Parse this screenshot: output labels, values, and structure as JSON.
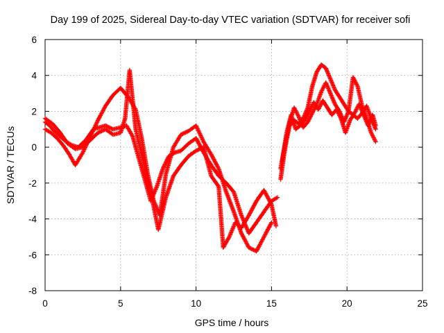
{
  "chart_data": {
    "type": "scatter",
    "title": "Day 199 of 2025, Sidereal Day-to-day VTEC variation (SDTVAR) for receiver sofi",
    "xlabel": "GPS time / hours",
    "ylabel": "SDTVAR / TECUs",
    "xlim": [
      0,
      25
    ],
    "ylim": [
      -8,
      6
    ],
    "x_ticks": [
      "0",
      "5",
      "10",
      "15",
      "20",
      "25"
    ],
    "y_ticks": [
      "-8",
      "-6",
      "-4",
      "-2",
      "0",
      "2",
      "4",
      "6"
    ],
    "grid": true,
    "marker": "plus",
    "color": "#ff0000",
    "series": [
      {
        "name": "",
        "x": [
          0.0,
          0.3,
          0.6,
          1.0,
          1.4,
          1.8,
          2.2,
          2.7,
          3.2,
          3.6,
          4.0,
          4.5,
          5.0,
          5.4,
          5.8,
          6.2,
          6.6,
          7.0,
          7.4,
          7.8,
          8.2,
          8.6,
          9.0,
          9.5,
          10.0,
          10.5,
          11.0,
          11.5,
          12.0,
          12.5,
          13.0,
          13.5,
          14.0,
          14.5,
          15.0,
          15.4
        ],
        "y": [
          1.4,
          1.2,
          0.9,
          0.6,
          0.3,
          0.1,
          0.0,
          0.4,
          1.0,
          1.1,
          1.2,
          1.0,
          1.1,
          1.2,
          0.6,
          -0.6,
          -1.8,
          -3.0,
          -2.2,
          -1.2,
          -0.5,
          -0.3,
          -0.2,
          0.2,
          0.5,
          -0.3,
          -1.0,
          -1.6,
          -2.0,
          -2.5,
          -3.8,
          -4.8,
          -4.2,
          -3.6,
          -3.0,
          -2.8
        ]
      },
      {
        "name": "",
        "x": [
          0.0,
          0.4,
          0.8,
          1.2,
          1.6,
          2.0,
          2.5,
          3.0,
          3.5,
          4.0,
          4.5,
          5.0,
          5.5,
          6.0,
          6.4,
          6.8,
          7.2,
          7.6,
          8.0,
          8.5,
          9.0,
          9.5,
          10.0,
          10.5,
          11.0,
          11.5,
          12.0,
          12.5,
          13.0,
          13.5,
          14.0,
          14.5,
          15.0
        ],
        "y": [
          1.0,
          0.8,
          0.5,
          0.1,
          -0.4,
          -1.0,
          -0.3,
          0.6,
          1.5,
          2.3,
          2.9,
          3.3,
          2.8,
          2.1,
          0.5,
          -1.5,
          -3.0,
          -3.8,
          -1.5,
          0.0,
          0.7,
          0.9,
          1.2,
          0.3,
          -0.4,
          -1.2,
          -2.5,
          -3.6,
          -4.8,
          -5.6,
          -5.8,
          -5.0,
          -4.2
        ]
      },
      {
        "name": "",
        "x": [
          0.0,
          0.5,
          1.0,
          1.5,
          2.0,
          2.5,
          3.0,
          3.5,
          4.0,
          4.5,
          5.0,
          5.3,
          5.6,
          6.0,
          6.5,
          7.0,
          7.5,
          8.0,
          8.5,
          9.0,
          9.5,
          10.0,
          10.5,
          11.0,
          11.5,
          11.8,
          12.2,
          12.6,
          13.0,
          13.5,
          14.0,
          14.5,
          15.0,
          15.3
        ],
        "y": [
          1.6,
          1.3,
          0.8,
          0.2,
          -0.1,
          0.0,
          0.4,
          0.8,
          1.0,
          0.7,
          0.8,
          1.6,
          4.3,
          1.0,
          -0.8,
          -2.5,
          -4.6,
          -2.8,
          -1.6,
          -1.0,
          -0.5,
          -0.2,
          0.0,
          -1.6,
          -2.2,
          -5.6,
          -5.0,
          -4.2,
          -4.5,
          -3.8,
          -3.0,
          -2.4,
          -3.2,
          -4.4
        ]
      },
      {
        "name": "",
        "x": [
          15.6,
          15.8,
          16.0,
          16.2,
          16.5,
          16.8,
          17.1,
          17.4,
          17.7,
          18.0,
          18.3,
          18.6,
          18.9,
          19.2,
          19.5,
          19.8,
          20.1,
          20.4,
          20.7,
          21.0,
          21.3,
          21.6,
          21.9
        ],
        "y": [
          -1.8,
          -0.6,
          0.4,
          1.2,
          1.5,
          1.3,
          1.6,
          2.2,
          3.4,
          4.2,
          4.6,
          4.4,
          3.8,
          3.2,
          2.8,
          2.4,
          2.0,
          1.8,
          1.6,
          1.9,
          2.3,
          1.6,
          1.0
        ]
      },
      {
        "name": "",
        "x": [
          15.6,
          15.9,
          16.2,
          16.5,
          16.8,
          17.1,
          17.4,
          17.7,
          18.0,
          18.3,
          18.6,
          18.9,
          19.2,
          19.5,
          19.8,
          20.1,
          20.4,
          20.7,
          21.0,
          21.3,
          21.6,
          21.9
        ],
        "y": [
          -1.2,
          0.2,
          1.4,
          2.2,
          1.7,
          1.1,
          1.4,
          1.9,
          2.4,
          3.1,
          3.6,
          3.0,
          2.4,
          2.0,
          1.4,
          2.0,
          3.9,
          3.4,
          2.3,
          1.6,
          0.8,
          0.3
        ]
      },
      {
        "name": "",
        "x": [
          15.7,
          16.0,
          16.3,
          16.6,
          16.9,
          17.2,
          17.5,
          17.8,
          18.1,
          18.4,
          18.7,
          19.0,
          19.3,
          19.6,
          19.9,
          20.2,
          20.5,
          20.8,
          21.1,
          21.4,
          21.7,
          21.9
        ],
        "y": [
          -0.8,
          0.8,
          1.8,
          1.0,
          1.2,
          1.5,
          2.0,
          2.5,
          2.1,
          2.6,
          2.2,
          1.8,
          2.1,
          1.6,
          0.8,
          1.5,
          1.9,
          2.4,
          1.8,
          1.2,
          1.8,
          1.2
        ]
      }
    ]
  }
}
